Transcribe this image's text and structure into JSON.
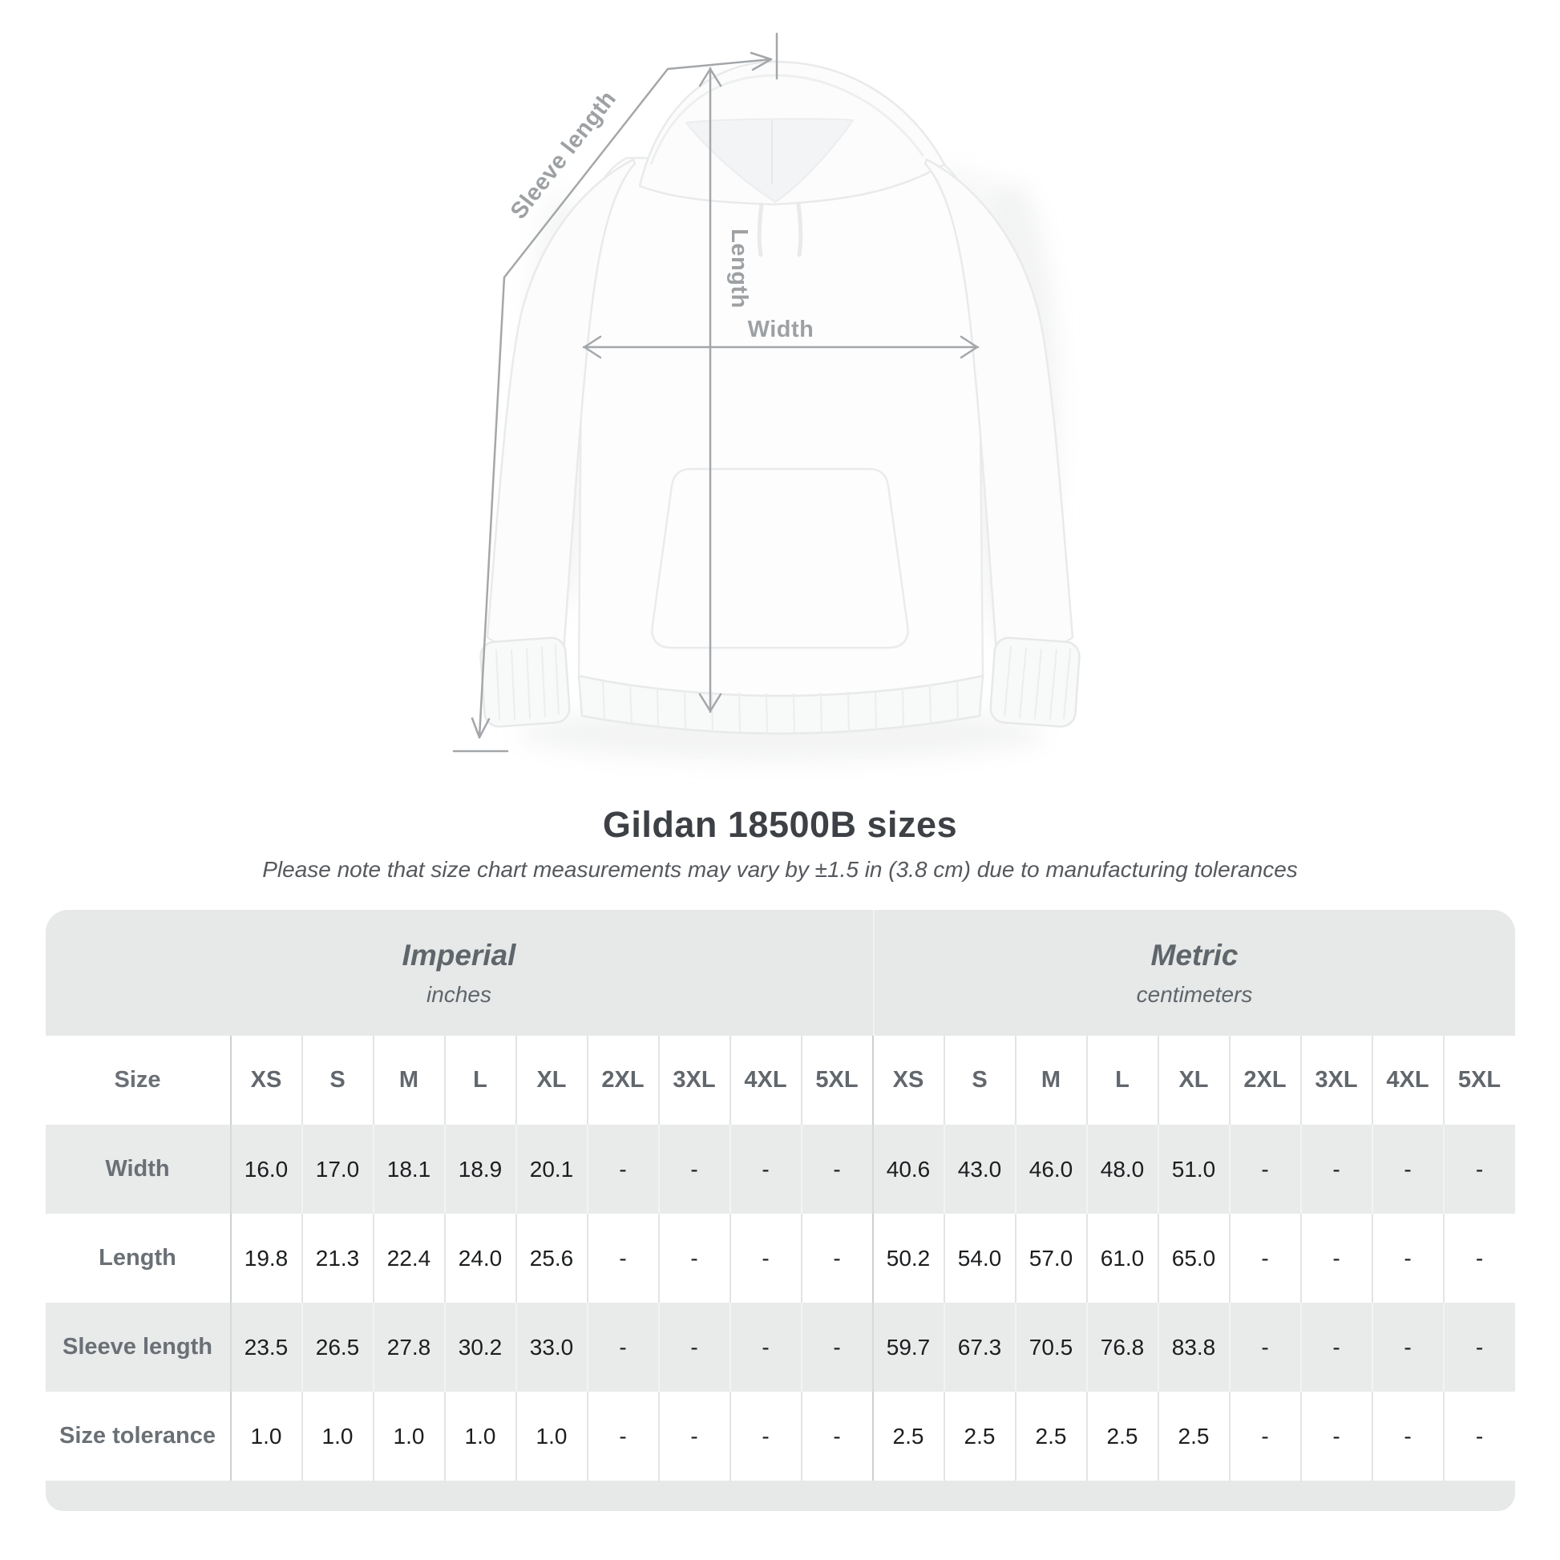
{
  "title": "Gildan 18500B sizes",
  "subtitle": "Please note that size chart measurements may vary by ±1.5 in (3.8 cm) due to manufacturing tolerances",
  "diagram": {
    "sleeve_length_label": "Sleeve length",
    "length_label": "Length",
    "width_label": "Width"
  },
  "chart_data": {
    "type": "table",
    "title": "Gildan 18500B sizes",
    "note": "Please note that size chart measurements may vary by ±1.5 in (3.8 cm) due to manufacturing tolerances",
    "unit_groups": [
      {
        "name": "Imperial",
        "unit": "inches"
      },
      {
        "name": "Metric",
        "unit": "centimeters"
      }
    ],
    "size_header": "Size",
    "columns": [
      "XS",
      "S",
      "M",
      "L",
      "XL",
      "2XL",
      "3XL",
      "4XL",
      "5XL"
    ],
    "rows": [
      {
        "label": "Width",
        "imperial": [
          "16.0",
          "17.0",
          "18.1",
          "18.9",
          "20.1",
          "-",
          "-",
          "-",
          "-"
        ],
        "metric": [
          "40.6",
          "43.0",
          "46.0",
          "48.0",
          "51.0",
          "-",
          "-",
          "-",
          "-"
        ]
      },
      {
        "label": "Length",
        "imperial": [
          "19.8",
          "21.3",
          "22.4",
          "24.0",
          "25.6",
          "-",
          "-",
          "-",
          "-"
        ],
        "metric": [
          "50.2",
          "54.0",
          "57.0",
          "61.0",
          "65.0",
          "-",
          "-",
          "-",
          "-"
        ]
      },
      {
        "label": "Sleeve length",
        "imperial": [
          "23.5",
          "26.5",
          "27.8",
          "30.2",
          "33.0",
          "-",
          "-",
          "-",
          "-"
        ],
        "metric": [
          "59.7",
          "67.3",
          "70.5",
          "76.8",
          "83.8",
          "-",
          "-",
          "-",
          "-"
        ]
      },
      {
        "label": "Size tolerance",
        "imperial": [
          "1.0",
          "1.0",
          "1.0",
          "1.0",
          "1.0",
          "-",
          "-",
          "-",
          "-"
        ],
        "metric": [
          "2.5",
          "2.5",
          "2.5",
          "2.5",
          "2.5",
          "-",
          "-",
          "-",
          "-"
        ]
      }
    ]
  },
  "colors": {
    "page_background": "#ffffff",
    "table_band_gray": "#e7e8e8",
    "row_stripe_gray": "#e9eaea",
    "group_text_gray": "#5f666b",
    "label_text_gray": "#6a7075",
    "value_text": "#1b1d1f",
    "measure_line_gray": "#a4a7aa",
    "measure_label_gray": "#9da1a4"
  }
}
